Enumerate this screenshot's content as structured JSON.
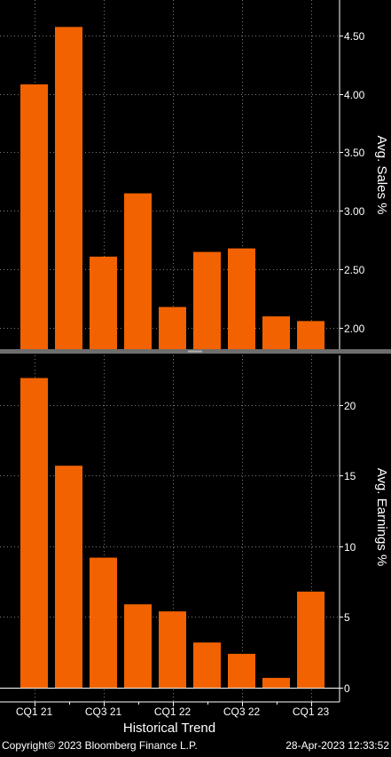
{
  "colors": {
    "background": "#000000",
    "bar": "#f26200",
    "grid": "#7a7a7a",
    "axis": "#ffffff",
    "text": "#ffffff",
    "divider": "#6e6e6e"
  },
  "chart_data": [
    {
      "type": "bar",
      "ylabel": "Avg. Sales %",
      "ylim": [
        1.82,
        4.8
      ],
      "yticks": [
        "2.00",
        "2.50",
        "3.00",
        "3.50",
        "4.00",
        "4.50"
      ],
      "grid": true,
      "values": [
        4.08,
        4.57,
        2.61,
        3.15,
        2.18,
        2.65,
        2.68,
        2.1,
        2.06
      ]
    },
    {
      "type": "bar",
      "ylabel": "Avg. Earnings %",
      "ylim": [
        -1.0,
        23.5
      ],
      "yticks": [
        "0",
        "5",
        "10",
        "15",
        "20"
      ],
      "grid": true,
      "values": [
        21.9,
        15.7,
        9.2,
        5.9,
        5.4,
        3.2,
        2.4,
        0.7,
        6.8
      ]
    }
  ],
  "x_axis": {
    "ticks": [
      "CQ1 21",
      "CQ3 21",
      "CQ1 22",
      "CQ3 22",
      "CQ1 23"
    ],
    "title": "Historical Trend"
  },
  "footer": {
    "copyright": "Copyright© 2023 Bloomberg Finance L.P.",
    "timestamp": "28-Apr-2023 12:33:52"
  }
}
